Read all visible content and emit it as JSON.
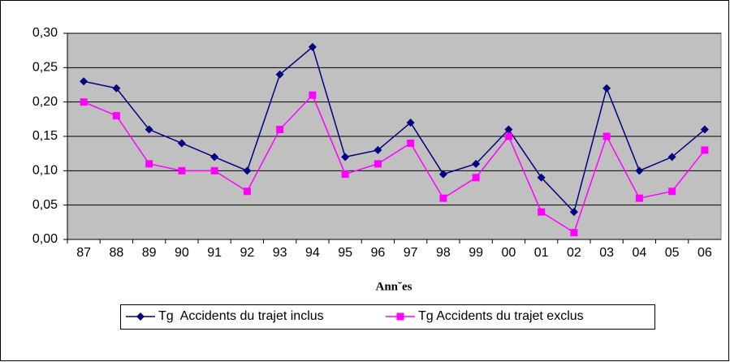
{
  "chart_data": {
    "type": "line",
    "x_label": "Ann˘es",
    "categories": [
      "87",
      "88",
      "89",
      "90",
      "91",
      "92",
      "93",
      "94",
      "95",
      "96",
      "97",
      "98",
      "99",
      "00",
      "01",
      "02",
      "03",
      "04",
      "05",
      "06"
    ],
    "series": [
      {
        "name": "Tg  Accidents du trajet inclus",
        "color": "#000080",
        "marker": "diamond",
        "values": [
          0.23,
          0.22,
          0.16,
          0.14,
          0.12,
          0.1,
          0.24,
          0.28,
          0.12,
          0.13,
          0.17,
          0.095,
          0.11,
          0.16,
          0.09,
          0.04,
          0.22,
          0.1,
          0.12,
          0.16
        ]
      },
      {
        "name": "Tg Accidents du trajet exclus",
        "color": "#ff00ff",
        "marker": "square",
        "values": [
          0.2,
          0.18,
          0.11,
          0.1,
          0.1,
          0.07,
          0.16,
          0.21,
          0.095,
          0.11,
          0.14,
          0.06,
          0.09,
          0.15,
          0.04,
          0.01,
          0.15,
          0.06,
          0.07,
          0.13
        ]
      }
    ],
    "ylim": [
      0,
      0.3
    ],
    "yticks": [
      {
        "value": 0,
        "label": "0,00"
      },
      {
        "value": 0.05,
        "label": "0,05"
      },
      {
        "value": 0.1,
        "label": "0,10"
      },
      {
        "value": 0.15,
        "label": "0,15"
      },
      {
        "value": 0.2,
        "label": "0,20"
      },
      {
        "value": 0.25,
        "label": "0,25"
      },
      {
        "value": 0.3,
        "label": "0,30"
      }
    ],
    "grid": true,
    "plot_background": "#c0c0c0"
  }
}
